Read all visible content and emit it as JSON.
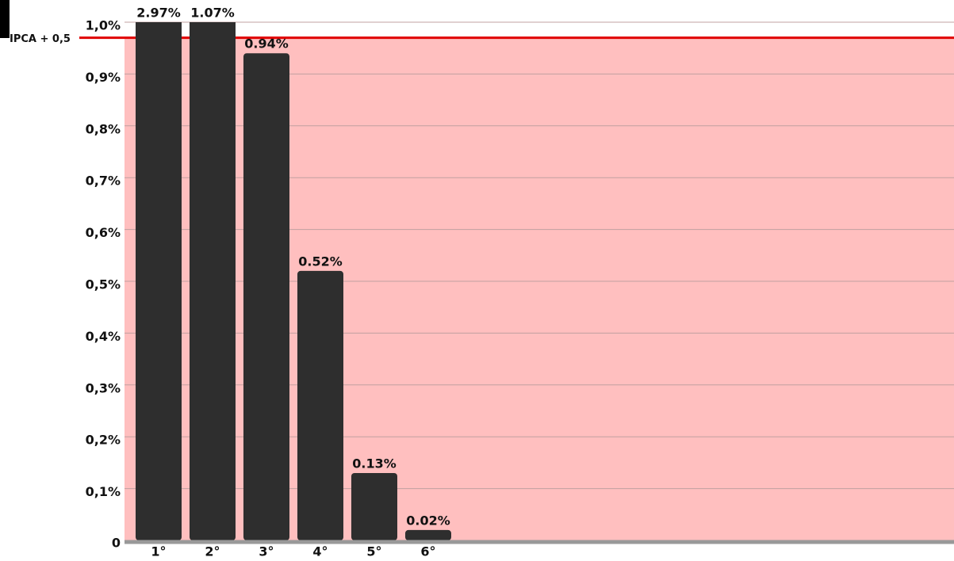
{
  "chart_data": {
    "type": "bar",
    "categories": [
      "1°",
      "2°",
      "3°",
      "4°",
      "5°",
      "6°"
    ],
    "values": [
      2.97,
      1.07,
      0.94,
      0.52,
      0.13,
      0.02
    ],
    "value_labels": [
      "2.97%",
      "1.07%",
      "0.94%",
      "0.52%",
      "0.13%",
      "0.02%"
    ],
    "color": "#2e2e2e",
    "ylim": [
      0,
      1.0
    ],
    "yticks": [
      0,
      {
        "value": 0.1,
        "label": "0,1%"
      },
      {
        "value": 0.2,
        "label": "0,2%"
      },
      {
        "value": 0.3,
        "label": "0,3%"
      },
      {
        "value": 0.4,
        "label": "0,4%"
      },
      {
        "value": 0.5,
        "label": "0,5%"
      },
      {
        "value": 0.6,
        "label": "0,6%"
      },
      {
        "value": 0.7,
        "label": "0,7%"
      },
      {
        "value": 0.8,
        "label": "0,8%"
      },
      {
        "value": 0.9,
        "label": "0,9%"
      },
      {
        "value": 1.0,
        "label": "1,0%"
      }
    ],
    "grid": true,
    "reference_line": {
      "label": "IPCA + 0,5",
      "value": 0.97,
      "color": "#e00000",
      "band_color": "#ffbfbf"
    }
  }
}
